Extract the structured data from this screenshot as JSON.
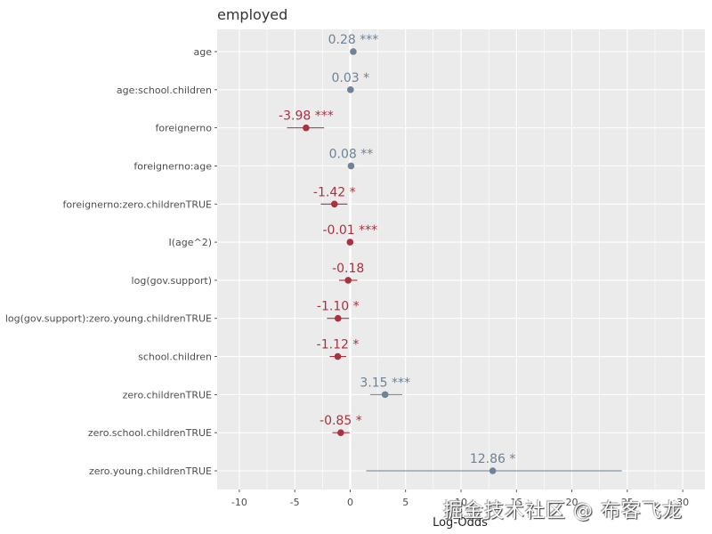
{
  "chart_data": {
    "type": "scatter",
    "subtype": "coefficient-forest-plot",
    "title": "employed",
    "xlabel": "Log-Odds",
    "ylabel": "",
    "xlim": [
      -12,
      32
    ],
    "xticks": [
      -10,
      -5,
      0,
      5,
      10,
      15,
      20,
      25,
      30
    ],
    "xtick_labels": [
      "-10",
      "-5",
      "0",
      "5",
      "10",
      "15",
      "20",
      "25",
      "30"
    ],
    "grid": true,
    "reference_line": 0,
    "colors": {
      "positive": "#6f8296",
      "negative": "#a83240",
      "panel": "#ebebeb",
      "grid": "#ffffff"
    },
    "terms": [
      {
        "term": "age",
        "estimate": 0.28,
        "label": "0.28 ***",
        "ci": [
          0.22,
          0.34
        ]
      },
      {
        "term": "age:school.children",
        "estimate": 0.03,
        "label": "0.03 *",
        "ci": [
          0.0,
          0.06
        ]
      },
      {
        "term": "foreignerno",
        "estimate": -3.98,
        "label": "-3.98 ***",
        "ci": [
          -5.7,
          -2.35
        ]
      },
      {
        "term": "foreignerno:age",
        "estimate": 0.08,
        "label": "0.08 **",
        "ci": [
          0.03,
          0.13
        ]
      },
      {
        "term": "foreignerno:zero.childrenTRUE",
        "estimate": -1.42,
        "label": "-1.42 *",
        "ci": [
          -2.65,
          -0.25
        ]
      },
      {
        "term": "I(age^2)",
        "estimate": -0.01,
        "label": "-0.01 ***",
        "ci": [
          -0.01,
          0.0
        ]
      },
      {
        "term": "log(gov.support)",
        "estimate": -0.18,
        "label": "-0.18",
        "ci": [
          -1.0,
          0.65
        ]
      },
      {
        "term": "log(gov.support):zero.young.childrenTRUE",
        "estimate": -1.1,
        "label": "-1.10 *",
        "ci": [
          -2.1,
          -0.1
        ]
      },
      {
        "term": "school.children",
        "estimate": -1.12,
        "label": "-1.12 *",
        "ci": [
          -1.85,
          -0.35
        ]
      },
      {
        "term": "zero.childrenTRUE",
        "estimate": 3.15,
        "label": "3.15 ***",
        "ci": [
          1.8,
          4.7
        ]
      },
      {
        "term": "zero.school.childrenTRUE",
        "estimate": -0.85,
        "label": "-0.85 *",
        "ci": [
          -1.6,
          -0.05
        ]
      },
      {
        "term": "zero.young.childrenTRUE",
        "estimate": 12.86,
        "label": "12.86 *",
        "ci": [
          1.45,
          24.5
        ]
      }
    ]
  },
  "watermark": "掘金技术社区 @ 布客飞龙"
}
